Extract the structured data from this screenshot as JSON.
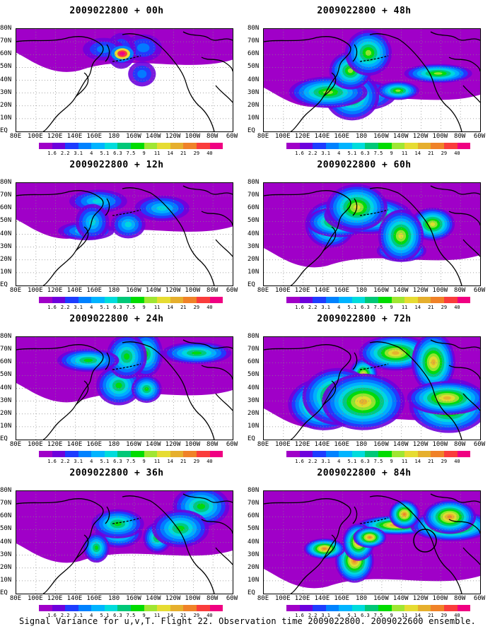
{
  "panels": [
    {
      "title": "2009022800 + 00h",
      "intensity": 0.15,
      "hotspot": true
    },
    {
      "title": "2009022800 + 12h",
      "intensity": 0.35,
      "hotspot": false
    },
    {
      "title": "2009022800 + 24h",
      "intensity": 0.5,
      "hotspot": false
    },
    {
      "title": "2009022800 + 36h",
      "intensity": 0.6,
      "hotspot": false
    },
    {
      "title": "2009022800 + 48h",
      "intensity": 0.7,
      "hotspot": false
    },
    {
      "title": "2009022800 + 60h",
      "intensity": 0.8,
      "hotspot": false
    },
    {
      "title": "2009022800 + 72h",
      "intensity": 0.9,
      "hotspot": false
    },
    {
      "title": "2009022800 + 84h",
      "intensity": 1.0,
      "hotspot": false,
      "circle": true
    }
  ],
  "y_axis_labels": [
    "80N",
    "70N",
    "60N",
    "50N",
    "40N",
    "30N",
    "20N",
    "10N",
    "EQ"
  ],
  "x_axis_labels": [
    "80E",
    "100E",
    "120E",
    "140E",
    "160E",
    "180",
    "160W",
    "140W",
    "120W",
    "100W",
    "80W",
    "60W"
  ],
  "colorbar": {
    "labels": [
      "1.6",
      "2.2",
      "3.1",
      "4",
      "5.1",
      "6.3",
      "7.5",
      "9",
      "11",
      "14",
      "21",
      "29",
      "40"
    ],
    "colors": [
      "#a000c8",
      "#6e00dc",
      "#1e3cff",
      "#0082ff",
      "#00b4ff",
      "#00dcdc",
      "#00c878",
      "#00dc00",
      "#a0e632",
      "#e6dc32",
      "#e6af2d",
      "#f08228",
      "#fa3c3c",
      "#f00082"
    ]
  },
  "caption": "Signal Variance for u,v,T. Flight 22. Observation time 2009022800. 2009022600 ensemble."
}
